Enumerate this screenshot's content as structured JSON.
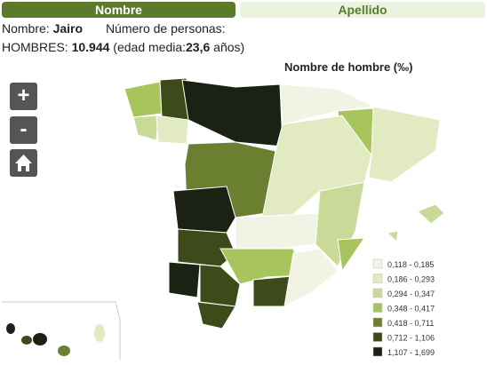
{
  "tabs": [
    "Nombre",
    "Apellido"
  ],
  "info": {
    "name_label": "Nombre:",
    "name": "Jairo",
    "count_label": "Número de personas:",
    "sex": "HOMBRES:",
    "count": "10.944",
    "age_open": "(edad media:",
    "age": "23,6",
    "age_close": "años)"
  },
  "controls": [
    "+",
    "-"
  ],
  "map": {
    "title": "Nombre de hombre (‰)",
    "legend": [
      {
        "label": "0,118 - 0,185",
        "color": "#f1f4e4"
      },
      {
        "label": "0,186 - 0,293",
        "color": "#e1eac0"
      },
      {
        "label": "0,294 - 0,347",
        "color": "#c9da98"
      },
      {
        "label": "0,348 - 0,417",
        "color": "#a7c55c"
      },
      {
        "label": "0,418 - 0,711",
        "color": "#6b7f30"
      },
      {
        "label": "0,712 - 1,106",
        "color": "#3d4a1a"
      },
      {
        "label": "1,107 - 1,699",
        "color": "#1b2113"
      }
    ]
  }
}
